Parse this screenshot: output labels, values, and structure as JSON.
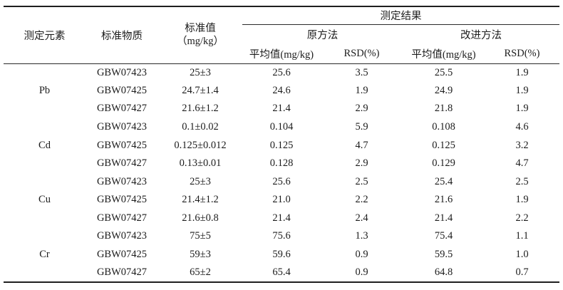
{
  "table": {
    "header": {
      "col_element": "测定元素",
      "col_material": "标准物质",
      "col_standard_line1": "标准值",
      "col_standard_line2": "（mg/kg）",
      "group_results": "测定结果",
      "group_original": "原方法",
      "group_improved": "改进方法",
      "col_mean": "平均值(mg/kg)",
      "col_rsd": "RSD(%)"
    },
    "groups": [
      {
        "element": "Pb",
        "rows": [
          {
            "material": "GBW07423",
            "standard": "25±3",
            "orig_mean": "25.6",
            "orig_rsd": "3.5",
            "impr_mean": "25.5",
            "impr_rsd": "1.9"
          },
          {
            "material": "GBW07425",
            "standard": "24.7±1.4",
            "orig_mean": "24.6",
            "orig_rsd": "1.9",
            "impr_mean": "24.9",
            "impr_rsd": "1.9"
          },
          {
            "material": "GBW07427",
            "standard": "21.6±1.2",
            "orig_mean": "21.4",
            "orig_rsd": "2.9",
            "impr_mean": "21.8",
            "impr_rsd": "1.9"
          }
        ]
      },
      {
        "element": "Cd",
        "rows": [
          {
            "material": "GBW07423",
            "standard": "0.1±0.02",
            "orig_mean": "0.104",
            "orig_rsd": "5.9",
            "impr_mean": "0.108",
            "impr_rsd": "4.6"
          },
          {
            "material": "GBW07425",
            "standard": "0.125±0.012",
            "orig_mean": "0.125",
            "orig_rsd": "4.7",
            "impr_mean": "0.125",
            "impr_rsd": "3.2"
          },
          {
            "material": "GBW07427",
            "standard": "0.13±0.01",
            "orig_mean": "0.128",
            "orig_rsd": "2.9",
            "impr_mean": "0.129",
            "impr_rsd": "4.7"
          }
        ]
      },
      {
        "element": "Cu",
        "rows": [
          {
            "material": "GBW07423",
            "standard": "25±3",
            "orig_mean": "25.6",
            "orig_rsd": "2.5",
            "impr_mean": "25.4",
            "impr_rsd": "2.5"
          },
          {
            "material": "GBW07425",
            "standard": "21.4±1.2",
            "orig_mean": "21.0",
            "orig_rsd": "2.2",
            "impr_mean": "21.6",
            "impr_rsd": "1.9"
          },
          {
            "material": "GBW07427",
            "standard": "21.6±0.8",
            "orig_mean": "21.4",
            "orig_rsd": "2.4",
            "impr_mean": "21.4",
            "impr_rsd": "2.2"
          }
        ]
      },
      {
        "element": "Cr",
        "rows": [
          {
            "material": "GBW07423",
            "standard": "75±5",
            "orig_mean": "75.6",
            "orig_rsd": "1.3",
            "impr_mean": "75.4",
            "impr_rsd": "1.1"
          },
          {
            "material": "GBW07425",
            "standard": "59±3",
            "orig_mean": "59.6",
            "orig_rsd": "0.9",
            "impr_mean": "59.5",
            "impr_rsd": "1.0"
          },
          {
            "material": "GBW07427",
            "standard": "65±2",
            "orig_mean": "65.4",
            "orig_rsd": "0.9",
            "impr_mean": "64.8",
            "impr_rsd": "0.7"
          }
        ]
      }
    ]
  }
}
